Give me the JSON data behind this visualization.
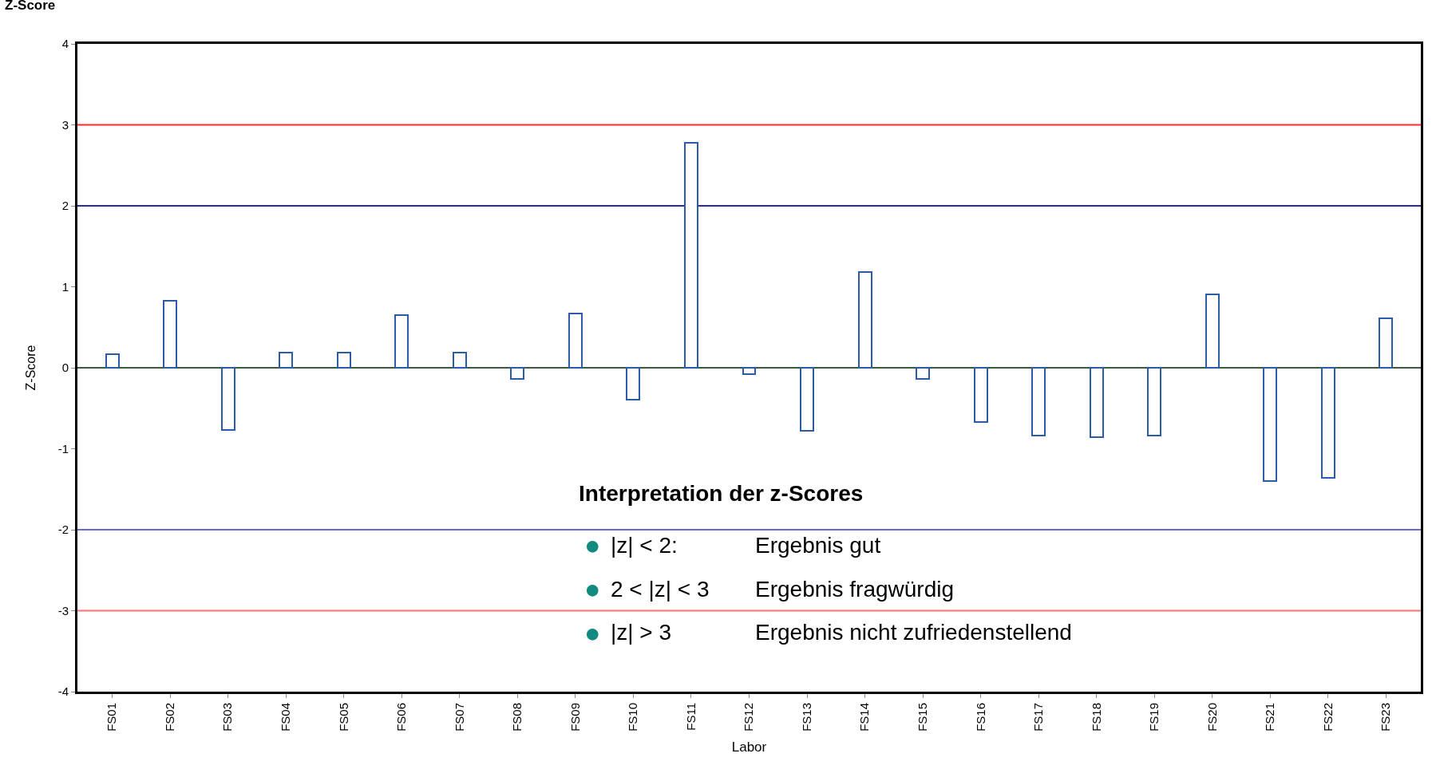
{
  "chart_data": {
    "type": "bar",
    "title": "Z-Score",
    "ylabel": "Z-Score",
    "xlabel": "Labor",
    "categories": [
      "FS01",
      "FS02",
      "FS03",
      "FS04",
      "FS05",
      "FS06",
      "FS07",
      "FS08",
      "FS09",
      "FS10",
      "FS11",
      "FS12",
      "FS13",
      "FS14",
      "FS15",
      "FS16",
      "FS17",
      "FS18",
      "FS19",
      "FS20",
      "FS21",
      "FS22",
      "FS23"
    ],
    "values": [
      0.17,
      0.83,
      -0.77,
      0.19,
      0.19,
      0.65,
      0.19,
      -0.14,
      0.67,
      -0.39,
      2.78,
      -0.08,
      -0.78,
      1.18,
      -0.14,
      -0.67,
      -0.84,
      -0.86,
      -0.84,
      0.91,
      -1.4,
      -1.36,
      0.61
    ],
    "color": "#2a5caa",
    "ylim": [
      -4,
      4
    ],
    "yticks": [
      -4,
      -3,
      -2,
      -1,
      0,
      1,
      2,
      3,
      4
    ],
    "grid": false,
    "ref_lines": [
      {
        "axis": "y",
        "value": 3,
        "color": "#ff2a2a"
      },
      {
        "axis": "y",
        "value": 2,
        "color": "#2a2aaa"
      },
      {
        "axis": "y",
        "value": 0,
        "color": "#3c5a3c"
      },
      {
        "axis": "y",
        "value": -2,
        "color": "#6a6ad8"
      },
      {
        "axis": "y",
        "value": -3,
        "color": "#ff7070"
      }
    ],
    "annotations": [
      "Interpretation der z-Scores",
      "●",
      "|z| < 2:",
      "Ergebnis gut",
      "●",
      "2 < |z| < 3",
      "Ergebnis fragwürdig",
      "●",
      "|z| > 3",
      "Ergebnis nicht zufriedenstellend"
    ]
  }
}
